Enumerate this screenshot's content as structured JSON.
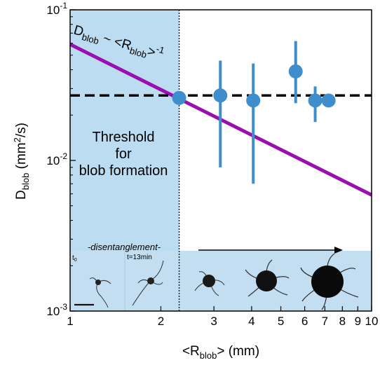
{
  "chart_data": {
    "type": "scatter",
    "title": "",
    "xscale": "log",
    "yscale": "log",
    "xlim": [
      1,
      10
    ],
    "ylim": [
      0.001,
      0.1
    ],
    "xlabel": {
      "prefix": "<R",
      "sub": "blob",
      "suffix": "> (mm)"
    },
    "ylabel": {
      "prefix": "D",
      "sub": "blob",
      "suffix": " (mm",
      "sup": "2",
      "end": "/s)"
    },
    "x_ticks": [
      {
        "value": 1,
        "label": "1"
      },
      {
        "value": 2,
        "label": "2"
      },
      {
        "value": 3,
        "label": "3"
      },
      {
        "value": 4,
        "label": "4"
      },
      {
        "value": 5,
        "label": "5"
      },
      {
        "value": 6,
        "label": "6"
      },
      {
        "value": 7,
        "label": "7"
      },
      {
        "value": 8,
        "label": "8"
      },
      {
        "value": 9,
        "label": "9"
      },
      {
        "value": 10,
        "label": "10"
      }
    ],
    "y_ticks": [
      {
        "value": 0.001,
        "base": "10",
        "exp": "-3"
      },
      {
        "value": 0.01,
        "base": "10",
        "exp": "-2"
      },
      {
        "value": 0.1,
        "base": "10",
        "exp": "-1"
      }
    ],
    "grid": false,
    "points": [
      {
        "x": 2.3,
        "y": 0.026,
        "ylow": null,
        "yhigh": null
      },
      {
        "x": 3.15,
        "y": 0.027,
        "ylow": 0.009,
        "yhigh": 0.046
      },
      {
        "x": 4.05,
        "y": 0.025,
        "ylow": 0.007,
        "yhigh": 0.044
      },
      {
        "x": 5.6,
        "y": 0.039,
        "ylow": 0.024,
        "yhigh": 0.062
      },
      {
        "x": 6.5,
        "y": 0.025,
        "ylow": 0.018,
        "yhigh": 0.031
      },
      {
        "x": 7.2,
        "y": 0.025,
        "ylow": null,
        "yhigh": null
      }
    ],
    "fit_line": {
      "label": {
        "a": "D",
        "a_sub": "blob",
        "mid": " ~ <R",
        "b_sub": "blob",
        "end": ">",
        "exp": "-1"
      },
      "x": [
        1,
        10
      ],
      "y": [
        0.059,
        0.0059
      ],
      "color": "#9b0fb0"
    },
    "threshold_line": {
      "y": 0.027,
      "color": "#000000"
    },
    "shaded_region": {
      "x_range": [
        1,
        2.3
      ],
      "text": [
        "Threshold",
        "for",
        "blob formation"
      ],
      "color": "#bcdcf1"
    },
    "point_color": "#3e8dcc",
    "inset": {
      "title": "-disentanglement-",
      "t0_label": "t",
      "t0_sub": "0",
      "t13_label": "t=13min",
      "band_color": "#c3def0"
    }
  }
}
